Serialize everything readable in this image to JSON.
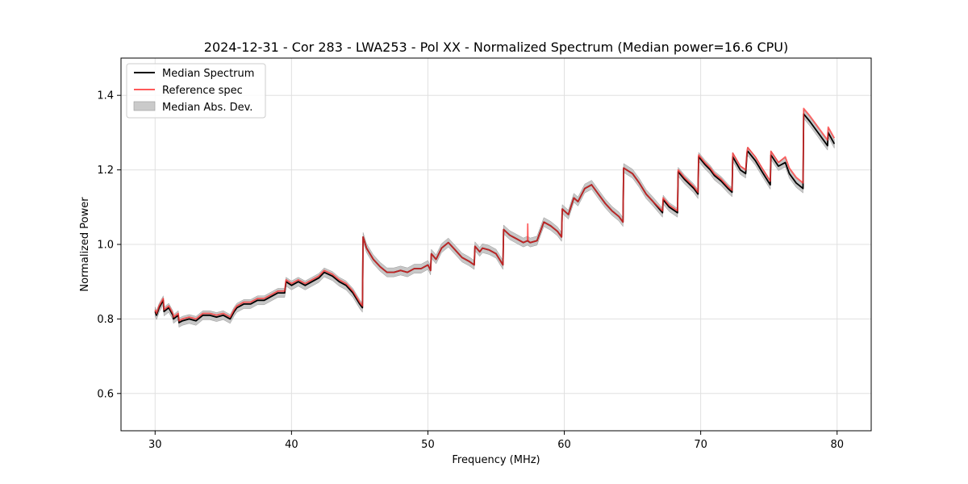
{
  "colors": {
    "median": "#000000",
    "reference": "#ff3030",
    "band": "#b4b4b4",
    "grid": "#e0e0e0"
  },
  "chart_data": {
    "type": "line",
    "title": "2024-12-31 - Cor 283 - LWA253 - Pol XX - Normalized Spectrum (Median power=16.6 CPU)",
    "xlabel": "Frequency (MHz)",
    "ylabel": "Normalized Power",
    "xlim": [
      27.5,
      82.5
    ],
    "ylim": [
      0.5,
      1.5
    ],
    "xticks": [
      30,
      40,
      50,
      60,
      70,
      80
    ],
    "xtick_labels": [
      "30",
      "40",
      "50",
      "60",
      "70",
      "80"
    ],
    "yticks": [
      0.6,
      0.8,
      1.0,
      1.2,
      1.4
    ],
    "ytick_labels": [
      "0.6",
      "0.8",
      "1.0",
      "1.2",
      "1.4"
    ],
    "grid": true,
    "legend_position": "top-left",
    "legend": [
      "Median Spectrum",
      "Reference spec",
      "Median Abs. Dev."
    ],
    "band_halfwidth": 0.012,
    "series": [
      {
        "name": "Median Spectrum",
        "x": [
          30.0,
          30.1,
          30.3,
          30.6,
          30.65,
          31.0,
          31.3,
          31.35,
          31.7,
          31.75,
          32.0,
          32.5,
          33.0,
          33.5,
          34.0,
          34.5,
          35.0,
          35.5,
          35.8,
          36.0,
          36.5,
          37.0,
          37.5,
          38.0,
          38.5,
          39.0,
          39.5,
          39.6,
          40.0,
          40.5,
          41.0,
          41.5,
          42.0,
          42.4,
          43.0,
          43.5,
          44.0,
          44.5,
          45.0,
          45.2,
          45.25,
          45.5,
          46.0,
          46.5,
          47.0,
          47.5,
          48.0,
          48.5,
          49.0,
          49.5,
          50.0,
          50.2,
          50.25,
          50.6,
          51.0,
          51.5,
          52.0,
          52.5,
          53.0,
          53.4,
          53.45,
          53.8,
          54.0,
          54.5,
          55.0,
          55.5,
          55.55,
          56.0,
          56.5,
          57.0,
          57.3,
          57.5,
          58.0,
          58.5,
          59.0,
          59.5,
          59.8,
          59.85,
          60.3,
          60.7,
          61.0,
          61.5,
          62.0,
          62.5,
          63.0,
          63.5,
          64.0,
          64.3,
          64.35,
          65.0,
          65.5,
          66.0,
          66.5,
          67.2,
          67.25,
          67.7,
          68.3,
          68.35,
          68.8,
          69.5,
          69.8,
          69.85,
          70.3,
          70.7,
          71.0,
          71.5,
          72.0,
          72.3,
          72.35,
          72.9,
          73.3,
          73.4,
          73.45,
          74.0,
          74.5,
          75.1,
          75.15,
          75.7,
          76.2,
          76.5,
          77.0,
          77.5,
          77.55,
          78.0,
          78.5,
          79.0,
          79.3,
          79.35,
          79.8
        ],
        "y": [
          0.82,
          0.81,
          0.83,
          0.85,
          0.82,
          0.83,
          0.81,
          0.8,
          0.81,
          0.79,
          0.795,
          0.8,
          0.795,
          0.81,
          0.81,
          0.805,
          0.81,
          0.8,
          0.82,
          0.83,
          0.84,
          0.84,
          0.85,
          0.85,
          0.86,
          0.87,
          0.87,
          0.9,
          0.89,
          0.9,
          0.89,
          0.9,
          0.91,
          0.925,
          0.915,
          0.9,
          0.89,
          0.87,
          0.84,
          0.83,
          1.02,
          0.99,
          0.96,
          0.94,
          0.925,
          0.925,
          0.93,
          0.925,
          0.935,
          0.935,
          0.945,
          0.93,
          0.975,
          0.96,
          0.99,
          1.005,
          0.985,
          0.965,
          0.955,
          0.945,
          0.995,
          0.98,
          0.99,
          0.985,
          0.975,
          0.945,
          1.04,
          1.025,
          1.015,
          1.005,
          1.01,
          1.005,
          1.01,
          1.06,
          1.05,
          1.035,
          1.02,
          1.095,
          1.08,
          1.125,
          1.115,
          1.15,
          1.16,
          1.135,
          1.11,
          1.09,
          1.075,
          1.06,
          1.205,
          1.19,
          1.165,
          1.135,
          1.115,
          1.085,
          1.12,
          1.1,
          1.085,
          1.195,
          1.175,
          1.15,
          1.135,
          1.235,
          1.215,
          1.2,
          1.185,
          1.17,
          1.15,
          1.14,
          1.235,
          1.2,
          1.19,
          1.245,
          1.25,
          1.225,
          1.195,
          1.16,
          1.24,
          1.21,
          1.22,
          1.19,
          1.165,
          1.15,
          1.35,
          1.33,
          1.305,
          1.28,
          1.265,
          1.3,
          1.27
        ]
      },
      {
        "name": "Reference spec",
        "x": [
          30.0,
          30.1,
          30.3,
          30.6,
          30.65,
          31.0,
          31.3,
          31.35,
          31.7,
          31.75,
          32.0,
          32.5,
          33.0,
          33.5,
          34.0,
          34.5,
          35.0,
          35.5,
          35.8,
          36.0,
          36.5,
          37.0,
          37.5,
          38.0,
          38.5,
          39.0,
          39.5,
          39.6,
          40.0,
          40.5,
          41.0,
          41.5,
          42.0,
          42.4,
          43.0,
          43.5,
          44.0,
          44.5,
          45.0,
          45.2,
          45.25,
          45.5,
          46.0,
          46.5,
          47.0,
          47.5,
          48.0,
          48.5,
          49.0,
          49.5,
          50.0,
          50.2,
          50.25,
          50.6,
          51.0,
          51.5,
          52.0,
          52.5,
          53.0,
          53.4,
          53.45,
          53.8,
          54.0,
          54.5,
          55.0,
          55.5,
          55.55,
          56.0,
          56.5,
          57.0,
          57.3,
          57.32,
          57.34,
          57.5,
          58.0,
          58.5,
          59.0,
          59.5,
          59.8,
          59.85,
          60.3,
          60.7,
          61.0,
          61.5,
          62.0,
          62.5,
          63.0,
          63.5,
          64.0,
          64.3,
          64.35,
          65.0,
          65.5,
          66.0,
          66.5,
          67.2,
          67.25,
          67.7,
          68.3,
          68.35,
          68.8,
          69.5,
          69.8,
          69.85,
          70.3,
          70.7,
          71.0,
          71.5,
          72.0,
          72.3,
          72.35,
          72.9,
          73.3,
          73.4,
          73.45,
          74.0,
          74.5,
          75.1,
          75.15,
          75.7,
          76.2,
          76.5,
          77.0,
          77.5,
          77.55,
          78.0,
          78.5,
          79.0,
          79.3,
          79.35,
          79.8
        ],
        "y": [
          0.825,
          0.815,
          0.835,
          0.855,
          0.825,
          0.835,
          0.815,
          0.805,
          0.815,
          0.795,
          0.8,
          0.805,
          0.8,
          0.815,
          0.815,
          0.81,
          0.815,
          0.805,
          0.825,
          0.835,
          0.845,
          0.845,
          0.855,
          0.855,
          0.865,
          0.875,
          0.875,
          0.905,
          0.895,
          0.905,
          0.895,
          0.905,
          0.915,
          0.93,
          0.92,
          0.905,
          0.895,
          0.875,
          0.845,
          0.835,
          1.02,
          0.99,
          0.96,
          0.94,
          0.925,
          0.925,
          0.93,
          0.925,
          0.935,
          0.935,
          0.945,
          0.93,
          0.975,
          0.96,
          0.99,
          1.005,
          0.985,
          0.965,
          0.955,
          0.945,
          0.995,
          0.98,
          0.99,
          0.985,
          0.975,
          0.945,
          1.04,
          1.025,
          1.015,
          1.005,
          1.01,
          1.055,
          1.01,
          1.005,
          1.01,
          1.06,
          1.05,
          1.035,
          1.02,
          1.095,
          1.08,
          1.125,
          1.115,
          1.15,
          1.16,
          1.135,
          1.11,
          1.09,
          1.075,
          1.06,
          1.205,
          1.19,
          1.165,
          1.135,
          1.115,
          1.09,
          1.125,
          1.105,
          1.09,
          1.2,
          1.18,
          1.155,
          1.14,
          1.24,
          1.22,
          1.205,
          1.19,
          1.175,
          1.155,
          1.145,
          1.245,
          1.21,
          1.2,
          1.25,
          1.26,
          1.235,
          1.205,
          1.17,
          1.25,
          1.22,
          1.235,
          1.205,
          1.18,
          1.165,
          1.365,
          1.345,
          1.32,
          1.295,
          1.28,
          1.315,
          1.285
        ]
      }
    ]
  }
}
